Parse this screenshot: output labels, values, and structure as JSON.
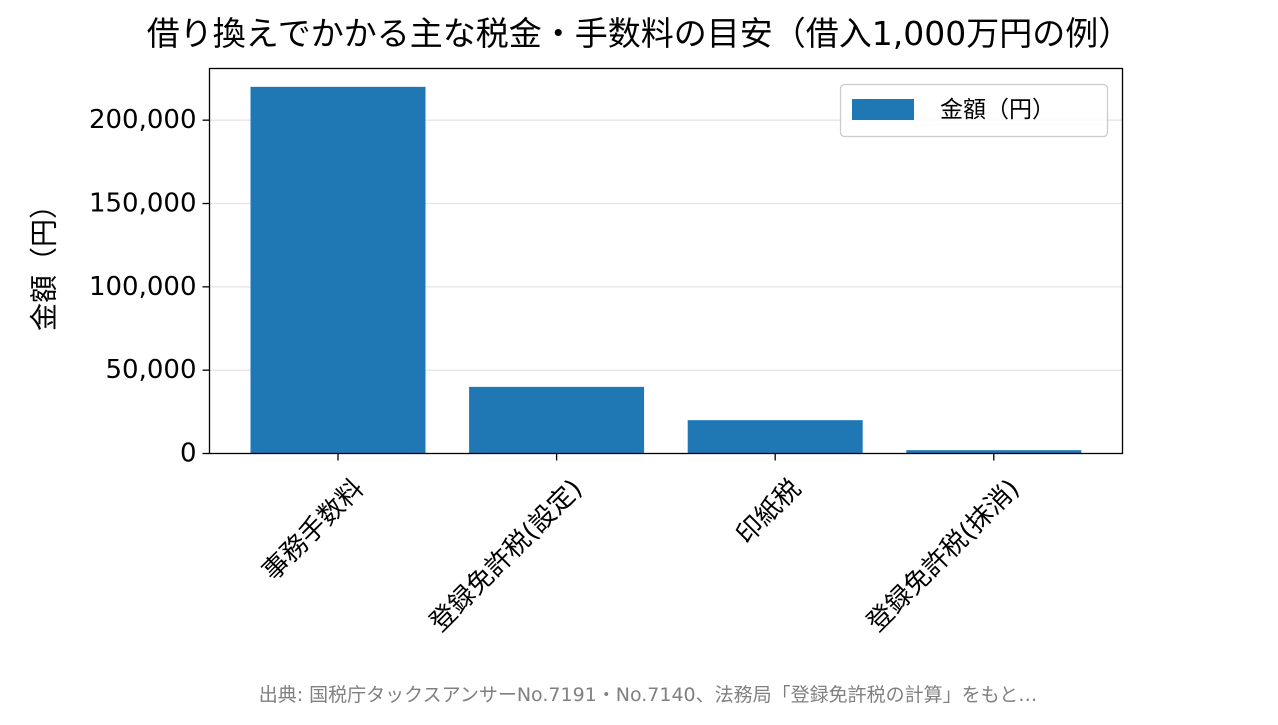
{
  "chart_data": {
    "type": "bar",
    "title": "借り換えでかかる主な税金・手数料の目安（借入1,000万円の例）",
    "xlabel": "",
    "ylabel": "金額（円）",
    "categories": [
      "事務手数料",
      "登録免許税(設定)",
      "印紙税",
      "登録免許税(抹消)"
    ],
    "series": [
      {
        "name": "金額（円）",
        "values": [
          220000,
          40000,
          20000,
          2000
        ]
      }
    ],
    "ylim": [
      0,
      231000
    ],
    "yticks": [
      0,
      50000,
      100000,
      150000,
      200000
    ],
    "ytick_labels": [
      "0",
      "50,000",
      "100,000",
      "150,000",
      "200,000"
    ],
    "grid": "y",
    "legend": "top-right",
    "colors": {
      "bar": "#1f77b4",
      "grid": "#e6e6e6",
      "axis": "#000000"
    }
  },
  "source_note": "出典: 国税庁タックスアンサーNo.7191・No.7140、法務局「登録免許税の計算」をもと…"
}
